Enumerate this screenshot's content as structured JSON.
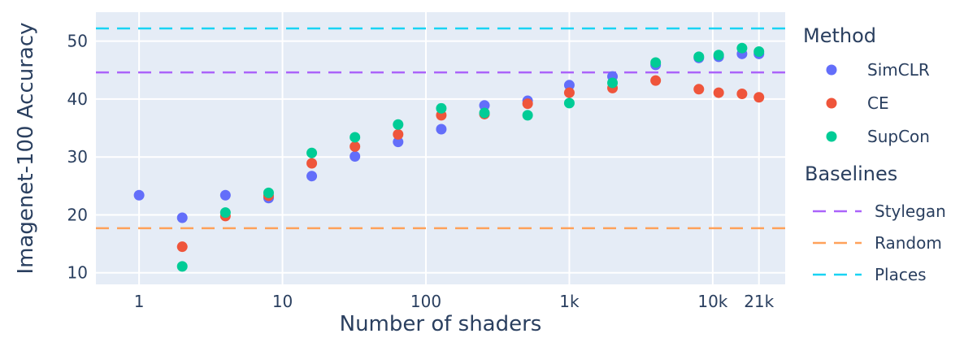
{
  "chart_data": {
    "type": "scatter",
    "xlabel": "Number of shaders",
    "ylabel": "Imagenet-100 Accuracy",
    "x_scale": "log",
    "x_tick_values": [
      1,
      10,
      100,
      1000,
      10000,
      21000
    ],
    "x_tick_labels": [
      "1",
      "10",
      "100",
      "1k",
      "10k",
      "21k"
    ],
    "y_tick_values": [
      10,
      20,
      30,
      40,
      50
    ],
    "y_tick_labels": [
      "10",
      "20",
      "30",
      "40",
      "50"
    ],
    "xlim": [
      0.5,
      32000
    ],
    "ylim": [
      8,
      55
    ],
    "grid": true,
    "legend_position": "right",
    "method_legend_title": "Method",
    "baseline_legend_title": "Baselines",
    "series": [
      {
        "name": "SimCLR",
        "color": "#636efa",
        "x": [
          1,
          2,
          4,
          8,
          16,
          32,
          64,
          128,
          256,
          512,
          1000,
          2000,
          4000,
          8000,
          11000,
          16000,
          21000
        ],
        "y": [
          23.4,
          19.5,
          23.4,
          22.9,
          26.7,
          30.1,
          32.6,
          34.8,
          38.9,
          39.7,
          42.4,
          43.9,
          45.9,
          47.1,
          47.3,
          47.8,
          47.8
        ]
      },
      {
        "name": "CE",
        "color": "#ef553b",
        "x": [
          2,
          4,
          8,
          16,
          32,
          64,
          128,
          256,
          512,
          1000,
          2000,
          4000,
          8000,
          11000,
          16000,
          21000
        ],
        "y": [
          14.5,
          19.8,
          23.3,
          28.9,
          31.8,
          33.9,
          37.2,
          37.4,
          39.2,
          41.1,
          41.9,
          43.2,
          41.7,
          41.1,
          40.9,
          40.3
        ]
      },
      {
        "name": "SupCon",
        "color": "#00cc96",
        "x": [
          2,
          4,
          8,
          16,
          32,
          64,
          128,
          256,
          512,
          1000,
          2000,
          4000,
          8000,
          11000,
          16000,
          21000
        ],
        "y": [
          11.1,
          20.4,
          23.8,
          30.7,
          33.4,
          35.6,
          38.4,
          37.6,
          37.2,
          39.3,
          42.8,
          46.3,
          47.3,
          47.6,
          48.8,
          48.2
        ]
      }
    ],
    "baselines": [
      {
        "name": "Stylegan",
        "color": "#ab63fa",
        "value": 44.6
      },
      {
        "name": "Random",
        "color": "#ffa15a",
        "value": 17.7
      },
      {
        "name": "Places",
        "color": "#19d3f3",
        "value": 52.2
      }
    ]
  }
}
